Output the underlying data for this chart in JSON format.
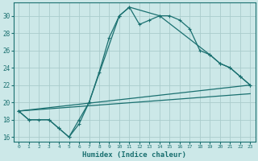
{
  "xlabel": "Humidex (Indice chaleur)",
  "bg_color": "#cce8e8",
  "grid_color": "#aacccc",
  "line_color": "#1a7070",
  "xlim": [
    -0.5,
    23.5
  ],
  "ylim": [
    15.5,
    31.5
  ],
  "yticks": [
    16,
    18,
    20,
    22,
    24,
    26,
    28,
    30
  ],
  "xticks": [
    0,
    1,
    2,
    3,
    4,
    5,
    6,
    7,
    8,
    9,
    10,
    11,
    12,
    13,
    14,
    15,
    16,
    17,
    18,
    19,
    20,
    21,
    22,
    23
  ],
  "line1_x": [
    0,
    1,
    2,
    3,
    4,
    5,
    6,
    7,
    8,
    9,
    10,
    11,
    12,
    13,
    14,
    15,
    16,
    17,
    18,
    19,
    20,
    21,
    22,
    23
  ],
  "line1_y": [
    19,
    18,
    18,
    18,
    17,
    16,
    18,
    20,
    23.5,
    27.5,
    30,
    31,
    29,
    29.5,
    30,
    30,
    29.5,
    28.5,
    26,
    25.5,
    24.5,
    24,
    23,
    22
  ],
  "line2_x": [
    0,
    1,
    3,
    4,
    5,
    6,
    7,
    10,
    11,
    14,
    19,
    20,
    21,
    22,
    23
  ],
  "line2_y": [
    19,
    18,
    18,
    17,
    16,
    17.5,
    20,
    30,
    31,
    30,
    25.5,
    24.5,
    24,
    23,
    22
  ],
  "line3_x": [
    0,
    23
  ],
  "line3_y": [
    19,
    22
  ],
  "line4_x": [
    0,
    23
  ],
  "line4_y": [
    19,
    21
  ],
  "font_family": "monospace"
}
